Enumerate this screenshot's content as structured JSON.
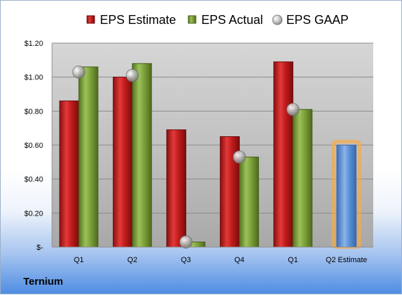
{
  "company": "Ternium",
  "chart_data": {
    "type": "bar",
    "categories": [
      "Q1",
      "Q2",
      "Q3",
      "Q4",
      "Q1",
      "Q2 Estimate"
    ],
    "series": [
      {
        "name": "EPS Estimate",
        "values": [
          0.86,
          1.0,
          0.69,
          0.65,
          1.09,
          null
        ],
        "color": "#cc2020"
      },
      {
        "name": "EPS Actual",
        "values": [
          1.06,
          1.08,
          0.03,
          0.53,
          0.81,
          null
        ],
        "color": "#7fa23b"
      },
      {
        "name": "EPS GAAP",
        "values": [
          1.03,
          1.01,
          0.03,
          0.53,
          0.81,
          null
        ],
        "color": "#b8b8b8"
      }
    ],
    "estimate_bar": {
      "category": "Q2 Estimate",
      "value": 0.6,
      "color": "#5b8fd6",
      "highlight": "#f5a94a"
    },
    "ytick_labels": [
      "$-",
      "$0.20",
      "$0.40",
      "$0.60",
      "$0.80",
      "$1.00",
      "$1.20"
    ],
    "ytick_values": [
      0,
      0.2,
      0.4,
      0.6,
      0.8,
      1.0,
      1.2
    ],
    "ylim": [
      0,
      1.2
    ],
    "grid": true,
    "legend_position": "top"
  }
}
